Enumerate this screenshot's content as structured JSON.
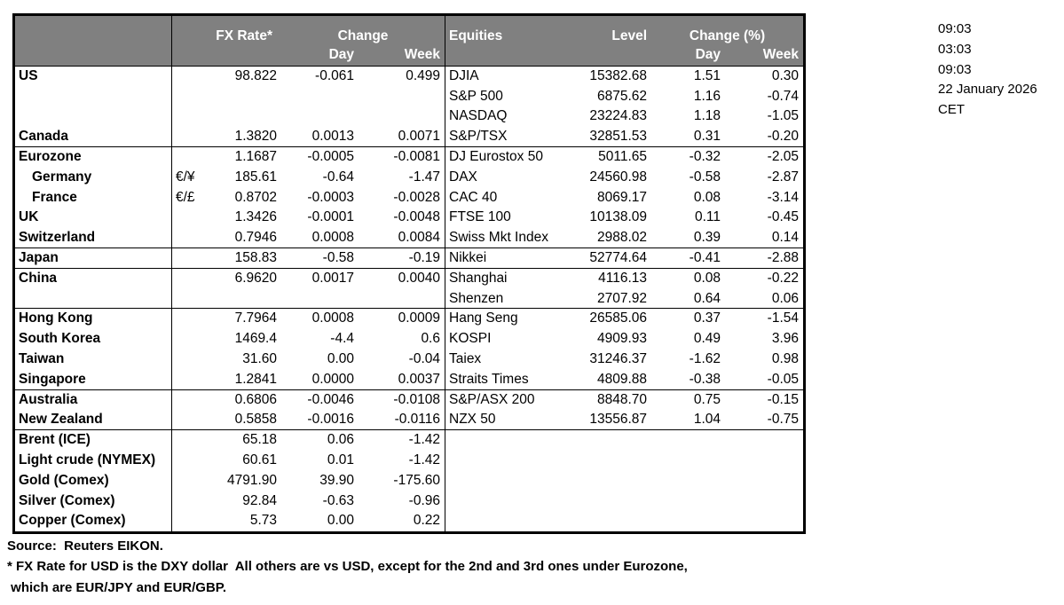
{
  "colors": {
    "header_bg": "#808080",
    "header_text": "#ffffff",
    "border": "#000000",
    "text": "#000000"
  },
  "timestamps": [
    "09:03",
    "03:03",
    "09:03",
    "22 January 2026",
    "CET"
  ],
  "table": {
    "fx_header": {
      "rate": "FX Rate*",
      "change": "Change",
      "day": "Day",
      "week": "Week"
    },
    "eq_header": {
      "title": "Equities",
      "level": "Level",
      "change": "Change (%)",
      "day": "Day",
      "week": "Week"
    },
    "rows": [
      {
        "label": "US",
        "sym": "",
        "rate": "98.822",
        "day": "-0.061",
        "week": "0.499",
        "eq": "DJIA",
        "level": "15382.68",
        "eday": "1.51",
        "eweek": "0.30",
        "indent": false,
        "sep": false
      },
      {
        "label": "",
        "sym": "",
        "rate": "",
        "day": "",
        "week": "",
        "eq": "S&P 500",
        "level": "6875.62",
        "eday": "1.16",
        "eweek": "-0.74",
        "indent": false,
        "sep": false
      },
      {
        "label": "",
        "sym": "",
        "rate": "",
        "day": "",
        "week": "",
        "eq": "NASDAQ",
        "level": "23224.83",
        "eday": "1.18",
        "eweek": "-1.05",
        "indent": false,
        "sep": false
      },
      {
        "label": "Canada",
        "sym": "",
        "rate": "1.3820",
        "day": "0.0013",
        "week": "0.0071",
        "eq": "S&P/TSX",
        "level": "32851.53",
        "eday": "0.31",
        "eweek": "-0.20",
        "indent": false,
        "sep": true
      },
      {
        "label": "Eurozone",
        "sym": "",
        "rate": "1.1687",
        "day": "-0.0005",
        "week": "-0.0081",
        "eq": "DJ Eurostox 50",
        "level": "5011.65",
        "eday": "-0.32",
        "eweek": "-2.05",
        "indent": false,
        "sep": false
      },
      {
        "label": "Germany",
        "sym": "€/¥",
        "rate": "185.61",
        "day": "-0.64",
        "week": "-1.47",
        "eq": "DAX",
        "level": "24560.98",
        "eday": "-0.58",
        "eweek": "-2.87",
        "indent": true,
        "sep": false
      },
      {
        "label": "France",
        "sym": "€/£",
        "rate": "0.8702",
        "day": "-0.0003",
        "week": "-0.0028",
        "eq": "CAC 40",
        "level": "8069.17",
        "eday": "0.08",
        "eweek": "-3.14",
        "indent": true,
        "sep": false
      },
      {
        "label": "UK",
        "sym": "",
        "rate": "1.3426",
        "day": "-0.0001",
        "week": "-0.0048",
        "eq": "FTSE 100",
        "level": "10138.09",
        "eday": "0.11",
        "eweek": "-0.45",
        "indent": false,
        "sep": false
      },
      {
        "label": "Switzerland",
        "sym": "",
        "rate": "0.7946",
        "day": "0.0008",
        "week": "0.0084",
        "eq": "Swiss Mkt Index",
        "level": "2988.02",
        "eday": "0.39",
        "eweek": "0.14",
        "indent": false,
        "sep": true
      },
      {
        "label": "Japan",
        "sym": "",
        "rate": "158.83",
        "day": "-0.58",
        "week": "-0.19",
        "eq": "Nikkei",
        "level": "52774.64",
        "eday": "-0.41",
        "eweek": "-2.88",
        "indent": false,
        "sep": true
      },
      {
        "label": "China",
        "sym": "",
        "rate": "6.9620",
        "day": "0.0017",
        "week": "0.0040",
        "eq": "Shanghai",
        "level": "4116.13",
        "eday": "0.08",
        "eweek": "-0.22",
        "indent": false,
        "sep": false
      },
      {
        "label": "",
        "sym": "",
        "rate": "",
        "day": "",
        "week": "",
        "eq": "Shenzen",
        "level": "2707.92",
        "eday": "0.64",
        "eweek": "0.06",
        "indent": false,
        "sep": true
      },
      {
        "label": "Hong Kong",
        "sym": "",
        "rate": "7.7964",
        "day": "0.0008",
        "week": "0.0009",
        "eq": "Hang Seng",
        "level": "26585.06",
        "eday": "0.37",
        "eweek": "-1.54",
        "indent": false,
        "sep": false
      },
      {
        "label": "South Korea",
        "sym": "",
        "rate": "1469.4",
        "day": "-4.4",
        "week": "0.6",
        "eq": "KOSPI",
        "level": "4909.93",
        "eday": "0.49",
        "eweek": "3.96",
        "indent": false,
        "sep": false
      },
      {
        "label": "Taiwan",
        "sym": "",
        "rate": "31.60",
        "day": "0.00",
        "week": "-0.04",
        "eq": "Taiex",
        "level": "31246.37",
        "eday": "-1.62",
        "eweek": "0.98",
        "indent": false,
        "sep": false
      },
      {
        "label": "Singapore",
        "sym": "",
        "rate": "1.2841",
        "day": "0.0000",
        "week": "0.0037",
        "eq": "Straits Times",
        "level": "4809.88",
        "eday": "-0.38",
        "eweek": "-0.05",
        "indent": false,
        "sep": true
      },
      {
        "label": "Australia",
        "sym": "",
        "rate": "0.6806",
        "day": "-0.0046",
        "week": "-0.0108",
        "eq": "S&P/ASX  200",
        "level": "8848.70",
        "eday": "0.75",
        "eweek": "-0.15",
        "indent": false,
        "sep": false
      },
      {
        "label": "New Zealand",
        "sym": "",
        "rate": "0.5858",
        "day": "-0.0016",
        "week": "-0.0116",
        "eq": "NZX 50",
        "level": "13556.87",
        "eday": "1.04",
        "eweek": "-0.75",
        "indent": false,
        "sep": true
      },
      {
        "label": "Brent (ICE)",
        "sym": "",
        "rate": "65.18",
        "day": "0.06",
        "week": "-1.42",
        "eq": "",
        "level": "",
        "eday": "",
        "eweek": "",
        "indent": false,
        "sep": false
      },
      {
        "label": "Light crude (NYMEX)",
        "sym": "",
        "rate": "60.61",
        "day": "0.01",
        "week": "-1.42",
        "eq": "",
        "level": "",
        "eday": "",
        "eweek": "",
        "indent": false,
        "sep": false
      },
      {
        "label": "Gold (Comex)",
        "sym": "",
        "rate": "4791.90",
        "day": "39.90",
        "week": "-175.60",
        "eq": "",
        "level": "",
        "eday": "",
        "eweek": "",
        "indent": false,
        "sep": false
      },
      {
        "label": "Silver (Comex)",
        "sym": "",
        "rate": "92.84",
        "day": "-0.63",
        "week": "-0.96",
        "eq": "",
        "level": "",
        "eday": "",
        "eweek": "",
        "indent": false,
        "sep": false
      },
      {
        "label": "Copper (Comex)",
        "sym": "",
        "rate": "5.73",
        "day": "0.00",
        "week": "0.22",
        "eq": "",
        "level": "",
        "eday": "",
        "eweek": "",
        "indent": false,
        "sep": false
      }
    ]
  },
  "footer": {
    "source": "Source:  Reuters EIKON.",
    "note1": "* FX Rate for USD is the DXY dollar  All others are vs USD, except for the 2nd and 3rd ones under Eurozone,",
    "note2": " which are EUR/JPY and EUR/GBP."
  }
}
